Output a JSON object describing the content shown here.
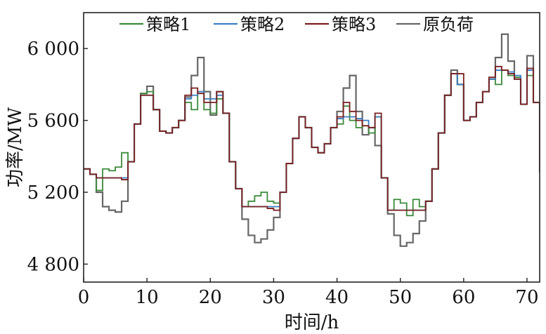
{
  "chart_data": {
    "type": "line",
    "xlabel": "时间/h",
    "ylabel": "功率/MW",
    "xlim": [
      0,
      72
    ],
    "ylim": [
      4700,
      6200
    ],
    "x_ticks": [
      {
        "value": 0,
        "label": "0"
      },
      {
        "value": 10,
        "label": "10"
      },
      {
        "value": 20,
        "label": "20"
      },
      {
        "value": 30,
        "label": "30"
      },
      {
        "value": 40,
        "label": "40"
      },
      {
        "value": 50,
        "label": "50"
      },
      {
        "value": 60,
        "label": "60"
      },
      {
        "value": 70,
        "label": "70"
      }
    ],
    "y_ticks": [
      {
        "value": 4800,
        "label": "4 800"
      },
      {
        "value": 5200,
        "label": "5 200"
      },
      {
        "value": 5600,
        "label": "5 600"
      },
      {
        "value": 6000,
        "label": "6 000"
      }
    ],
    "grid": false,
    "legend_position": "top",
    "series": [
      {
        "name": "原负荷",
        "color": "#666666",
        "x": [
          0,
          1,
          2,
          3,
          4,
          5,
          6,
          7,
          8,
          9,
          10,
          11,
          12,
          13,
          14,
          15,
          16,
          17,
          18,
          19,
          20,
          21,
          22,
          23,
          24,
          25,
          26,
          27,
          28,
          29,
          30,
          31,
          32,
          33,
          34,
          35,
          36,
          37,
          38,
          39,
          40,
          41,
          42,
          43,
          44,
          45,
          46,
          47,
          48,
          49,
          50,
          51,
          52,
          53,
          54,
          55,
          56,
          57,
          58,
          59,
          60,
          61,
          62,
          63,
          64,
          65,
          66,
          67,
          68,
          69,
          70,
          71,
          72
        ],
        "y": [
          5330,
          5300,
          5200,
          5120,
          5100,
          5090,
          5150,
          5370,
          5580,
          5750,
          5790,
          5660,
          5540,
          5530,
          5560,
          5600,
          5730,
          5850,
          5950,
          5760,
          5630,
          5760,
          5640,
          5370,
          5220,
          5050,
          4960,
          4920,
          4940,
          4990,
          5060,
          5200,
          5360,
          5500,
          5620,
          5560,
          5450,
          5420,
          5470,
          5560,
          5650,
          5780,
          5850,
          5650,
          5520,
          5560,
          5460,
          5280,
          5080,
          4960,
          4900,
          4920,
          4970,
          5040,
          5150,
          5330,
          5530,
          5740,
          5880,
          5800,
          5600,
          5620,
          5700,
          5760,
          5830,
          5950,
          6080,
          5930,
          5830,
          5690,
          5960,
          5700,
          5310
        ]
      },
      {
        "name": "策略1",
        "color": "#3a8a3a",
        "x": [
          0,
          1,
          2,
          3,
          4,
          5,
          6,
          7,
          8,
          9,
          10,
          11,
          12,
          13,
          14,
          15,
          16,
          17,
          18,
          19,
          20,
          21,
          22,
          23,
          24,
          25,
          26,
          27,
          28,
          29,
          30,
          31,
          32,
          33,
          34,
          35,
          36,
          37,
          38,
          39,
          40,
          41,
          42,
          43,
          44,
          45,
          46,
          47,
          48,
          49,
          50,
          51,
          52,
          53,
          54,
          55,
          56,
          57,
          58,
          59,
          60,
          61,
          62,
          63,
          64,
          65,
          66,
          67,
          68,
          69,
          70,
          71,
          72
        ],
        "y": [
          5330,
          5300,
          5210,
          5330,
          5320,
          5340,
          5420,
          5370,
          5580,
          5750,
          5760,
          5660,
          5540,
          5530,
          5560,
          5600,
          5700,
          5660,
          5760,
          5660,
          5640,
          5720,
          5640,
          5370,
          5220,
          5120,
          5150,
          5180,
          5200,
          5150,
          5140,
          5200,
          5360,
          5500,
          5620,
          5560,
          5450,
          5420,
          5470,
          5560,
          5580,
          5680,
          5600,
          5560,
          5570,
          5530,
          5620,
          5280,
          5100,
          5160,
          5140,
          5070,
          5160,
          5120,
          5150,
          5330,
          5530,
          5740,
          5860,
          5800,
          5600,
          5620,
          5700,
          5760,
          5830,
          5800,
          5880,
          5850,
          5840,
          5690,
          5850,
          5700,
          5310
        ]
      },
      {
        "name": "策略2",
        "color": "#3b7fc4",
        "x": [
          0,
          1,
          2,
          3,
          4,
          5,
          6,
          7,
          8,
          9,
          10,
          11,
          12,
          13,
          14,
          15,
          16,
          17,
          18,
          19,
          20,
          21,
          22,
          23,
          24,
          25,
          26,
          27,
          28,
          29,
          30,
          31,
          32,
          33,
          34,
          35,
          36,
          37,
          38,
          39,
          40,
          41,
          42,
          43,
          44,
          45,
          46,
          47,
          48,
          49,
          50,
          51,
          52,
          53,
          54,
          55,
          56,
          57,
          58,
          59,
          60,
          61,
          62,
          63,
          64,
          65,
          66,
          67,
          68,
          69,
          70,
          71,
          72
        ],
        "y": [
          5330,
          5300,
          5280,
          5280,
          5280,
          5280,
          5280,
          5370,
          5580,
          5740,
          5740,
          5660,
          5540,
          5530,
          5560,
          5600,
          5720,
          5740,
          5760,
          5720,
          5720,
          5740,
          5640,
          5370,
          5220,
          5120,
          5120,
          5120,
          5120,
          5120,
          5120,
          5200,
          5360,
          5500,
          5620,
          5560,
          5450,
          5420,
          5470,
          5560,
          5610,
          5620,
          5620,
          5610,
          5600,
          5560,
          5620,
          5280,
          5100,
          5100,
          5100,
          5100,
          5100,
          5100,
          5150,
          5330,
          5530,
          5740,
          5860,
          5800,
          5600,
          5620,
          5700,
          5760,
          5830,
          5880,
          5880,
          5870,
          5850,
          5690,
          5880,
          5700,
          5310
        ]
      },
      {
        "name": "策略3",
        "color": "#7a1f1f",
        "x": [
          0,
          1,
          2,
          3,
          4,
          5,
          6,
          7,
          8,
          9,
          10,
          11,
          12,
          13,
          14,
          15,
          16,
          17,
          18,
          19,
          20,
          21,
          22,
          23,
          24,
          25,
          26,
          27,
          28,
          29,
          30,
          31,
          32,
          33,
          34,
          35,
          36,
          37,
          38,
          39,
          40,
          41,
          42,
          43,
          44,
          45,
          46,
          47,
          48,
          49,
          50,
          51,
          52,
          53,
          54,
          55,
          56,
          57,
          58,
          59,
          60,
          61,
          62,
          63,
          64,
          65,
          66,
          67,
          68,
          69,
          70,
          71,
          72
        ],
        "y": [
          5330,
          5300,
          5280,
          5280,
          5280,
          5280,
          5270,
          5370,
          5580,
          5740,
          5740,
          5660,
          5540,
          5530,
          5560,
          5600,
          5740,
          5780,
          5750,
          5700,
          5700,
          5760,
          5640,
          5370,
          5220,
          5120,
          5120,
          5120,
          5120,
          5110,
          5100,
          5200,
          5360,
          5500,
          5620,
          5560,
          5450,
          5420,
          5470,
          5560,
          5620,
          5700,
          5650,
          5600,
          5570,
          5560,
          5640,
          5280,
          5100,
          5100,
          5100,
          5100,
          5100,
          5100,
          5150,
          5330,
          5530,
          5740,
          5860,
          5860,
          5600,
          5620,
          5700,
          5760,
          5840,
          5900,
          5880,
          5860,
          5830,
          5690,
          5890,
          5700,
          5310
        ]
      }
    ]
  }
}
